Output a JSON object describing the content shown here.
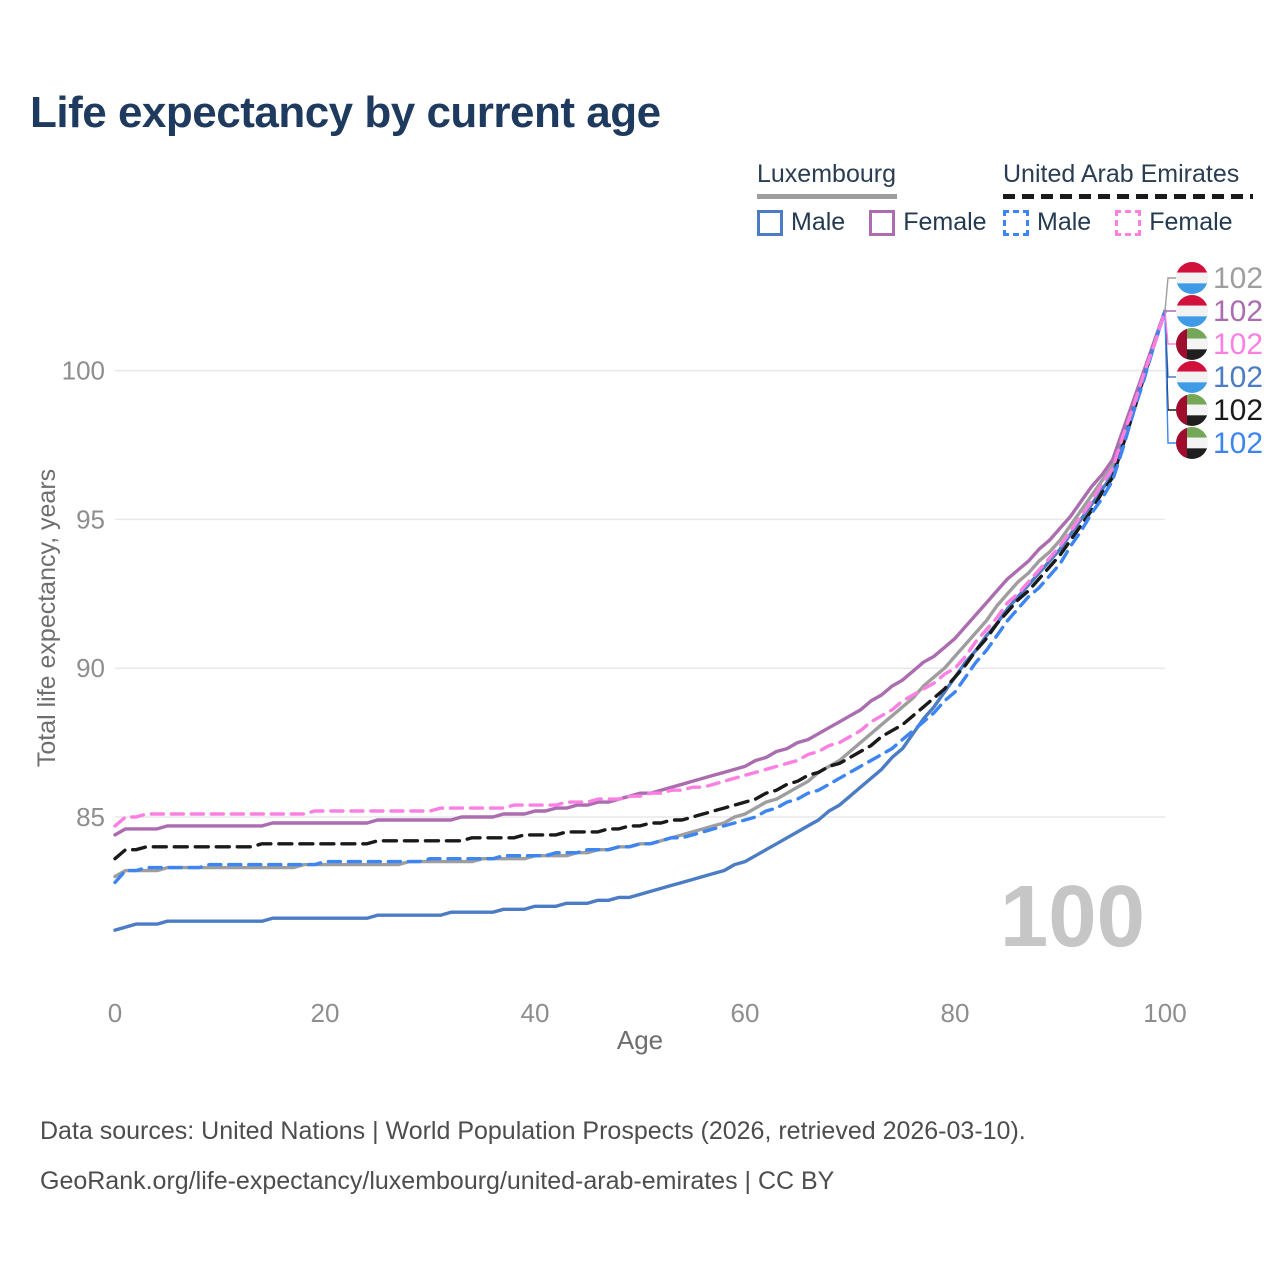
{
  "title": "Life expectancy by current age",
  "legend": {
    "groups": [
      {
        "id": "lux",
        "label": "Luxembourg",
        "underline": "solid",
        "color": "#9e9e9e",
        "items": [
          {
            "series": "lux-male",
            "label": "Male"
          },
          {
            "series": "lux-female",
            "label": "Female"
          }
        ]
      },
      {
        "id": "uae",
        "label": "United Arab Emirates",
        "underline": "dashed",
        "color": "#1a1a1a",
        "items": [
          {
            "series": "uae-male",
            "label": "Male"
          },
          {
            "series": "uae-female",
            "label": "Female"
          }
        ]
      }
    ]
  },
  "watermark": "100",
  "footer": {
    "line1": "Data sources: United Nations | World Population Prospects (2026, retrieved 2026-03-10).",
    "line2": "GeoRank.org/life-expectancy/luxembourg/united-arab-emirates | CC BY"
  },
  "chart_data": {
    "type": "line",
    "title": "Life expectancy by current age",
    "xlabel": "Age",
    "ylabel": "Total life expectancy, years",
    "xlim": [
      0,
      100
    ],
    "ylim": [
      79.5,
      103
    ],
    "x_ticks": [
      0,
      20,
      40,
      60,
      80,
      100
    ],
    "y_ticks": [
      85,
      90,
      95,
      100
    ],
    "grid": "horizontal",
    "legend_position": "top-right",
    "hover_age": "100",
    "ages": [
      0,
      1,
      3,
      5,
      10,
      15,
      20,
      25,
      30,
      35,
      40,
      45,
      50,
      55,
      60,
      65,
      70,
      75,
      80,
      85,
      90,
      95,
      100
    ],
    "flags": {
      "lux": {
        "stripes": [
          "#d2103c",
          "#f2f2f2",
          "#3f9be8"
        ]
      },
      "uae": {
        "band": "#9e0c2e",
        "stripes": [
          "#74a757",
          "#f4f4f4",
          "#1f1f1f"
        ]
      }
    },
    "series": [
      {
        "id": "lux-total",
        "name": "Luxembourg (both sexes)",
        "color": "#9e9e9e",
        "style": "solid",
        "dash": null,
        "end_label": "102",
        "flag": "lux",
        "label_row": 0,
        "values": [
          83.0,
          83.15,
          83.22,
          83.25,
          83.28,
          83.32,
          83.38,
          83.42,
          83.48,
          83.56,
          83.65,
          83.8,
          84.05,
          84.45,
          85.1,
          86.0,
          87.15,
          88.7,
          90.35,
          92.5,
          94.25,
          96.8,
          102
        ]
      },
      {
        "id": "lux-female",
        "name": "Luxembourg Female",
        "color": "#ab6cb0",
        "style": "solid",
        "dash": null,
        "end_label": "102",
        "flag": "lux",
        "label_row": 1,
        "values": [
          84.35,
          84.55,
          84.62,
          84.65,
          84.7,
          84.75,
          84.8,
          84.85,
          84.9,
          85.0,
          85.15,
          85.4,
          85.75,
          86.15,
          86.7,
          87.45,
          88.4,
          89.6,
          91.0,
          92.95,
          94.65,
          97.0,
          102
        ]
      },
      {
        "id": "lux-male",
        "name": "Luxembourg Male",
        "color": "#4b7cc4",
        "style": "solid",
        "dash": null,
        "end_label": "102",
        "flag": "lux",
        "label_row": 3,
        "values": [
          81.15,
          81.32,
          81.42,
          81.45,
          81.5,
          81.55,
          81.6,
          81.65,
          81.72,
          81.82,
          81.95,
          82.12,
          82.4,
          82.85,
          83.5,
          84.45,
          85.65,
          87.3,
          89.7,
          92.0,
          93.95,
          96.5,
          102
        ]
      },
      {
        "id": "uae-total",
        "name": "United Arab Emirates (both sexes)",
        "color": "#1a1a1a",
        "style": "dashed",
        "dash": [
          13,
          8
        ],
        "end_label": "102",
        "flag": "uae",
        "label_row": 4,
        "values": [
          83.55,
          83.85,
          83.95,
          83.98,
          84.02,
          84.06,
          84.1,
          84.15,
          84.2,
          84.28,
          84.38,
          84.5,
          84.7,
          85.0,
          85.5,
          86.2,
          87.0,
          88.1,
          89.65,
          91.9,
          93.75,
          96.4,
          102
        ]
      },
      {
        "id": "uae-male",
        "name": "United Arab Emirates Male",
        "color": "#3d85f0",
        "style": "dashed",
        "dash": [
          12,
          8
        ],
        "end_label": "102",
        "flag": "uae",
        "label_row": 5,
        "values": [
          82.75,
          83.15,
          83.28,
          83.32,
          83.36,
          83.4,
          83.45,
          83.5,
          83.55,
          83.62,
          83.72,
          83.85,
          84.05,
          84.4,
          84.9,
          85.6,
          86.45,
          87.55,
          89.2,
          91.6,
          93.5,
          96.3,
          102
        ]
      },
      {
        "id": "uae-female",
        "name": "United Arab Emirates Female",
        "color": "#fb80e2",
        "style": "dashed",
        "dash": [
          12,
          8
        ],
        "end_label": "102",
        "flag": "uae",
        "label_row": 2,
        "values": [
          84.65,
          84.95,
          85.05,
          85.08,
          85.1,
          85.13,
          85.16,
          85.2,
          85.24,
          85.3,
          85.4,
          85.52,
          85.7,
          85.95,
          86.35,
          86.9,
          87.7,
          88.85,
          90.0,
          92.15,
          94.05,
          96.7,
          102
        ]
      }
    ]
  }
}
